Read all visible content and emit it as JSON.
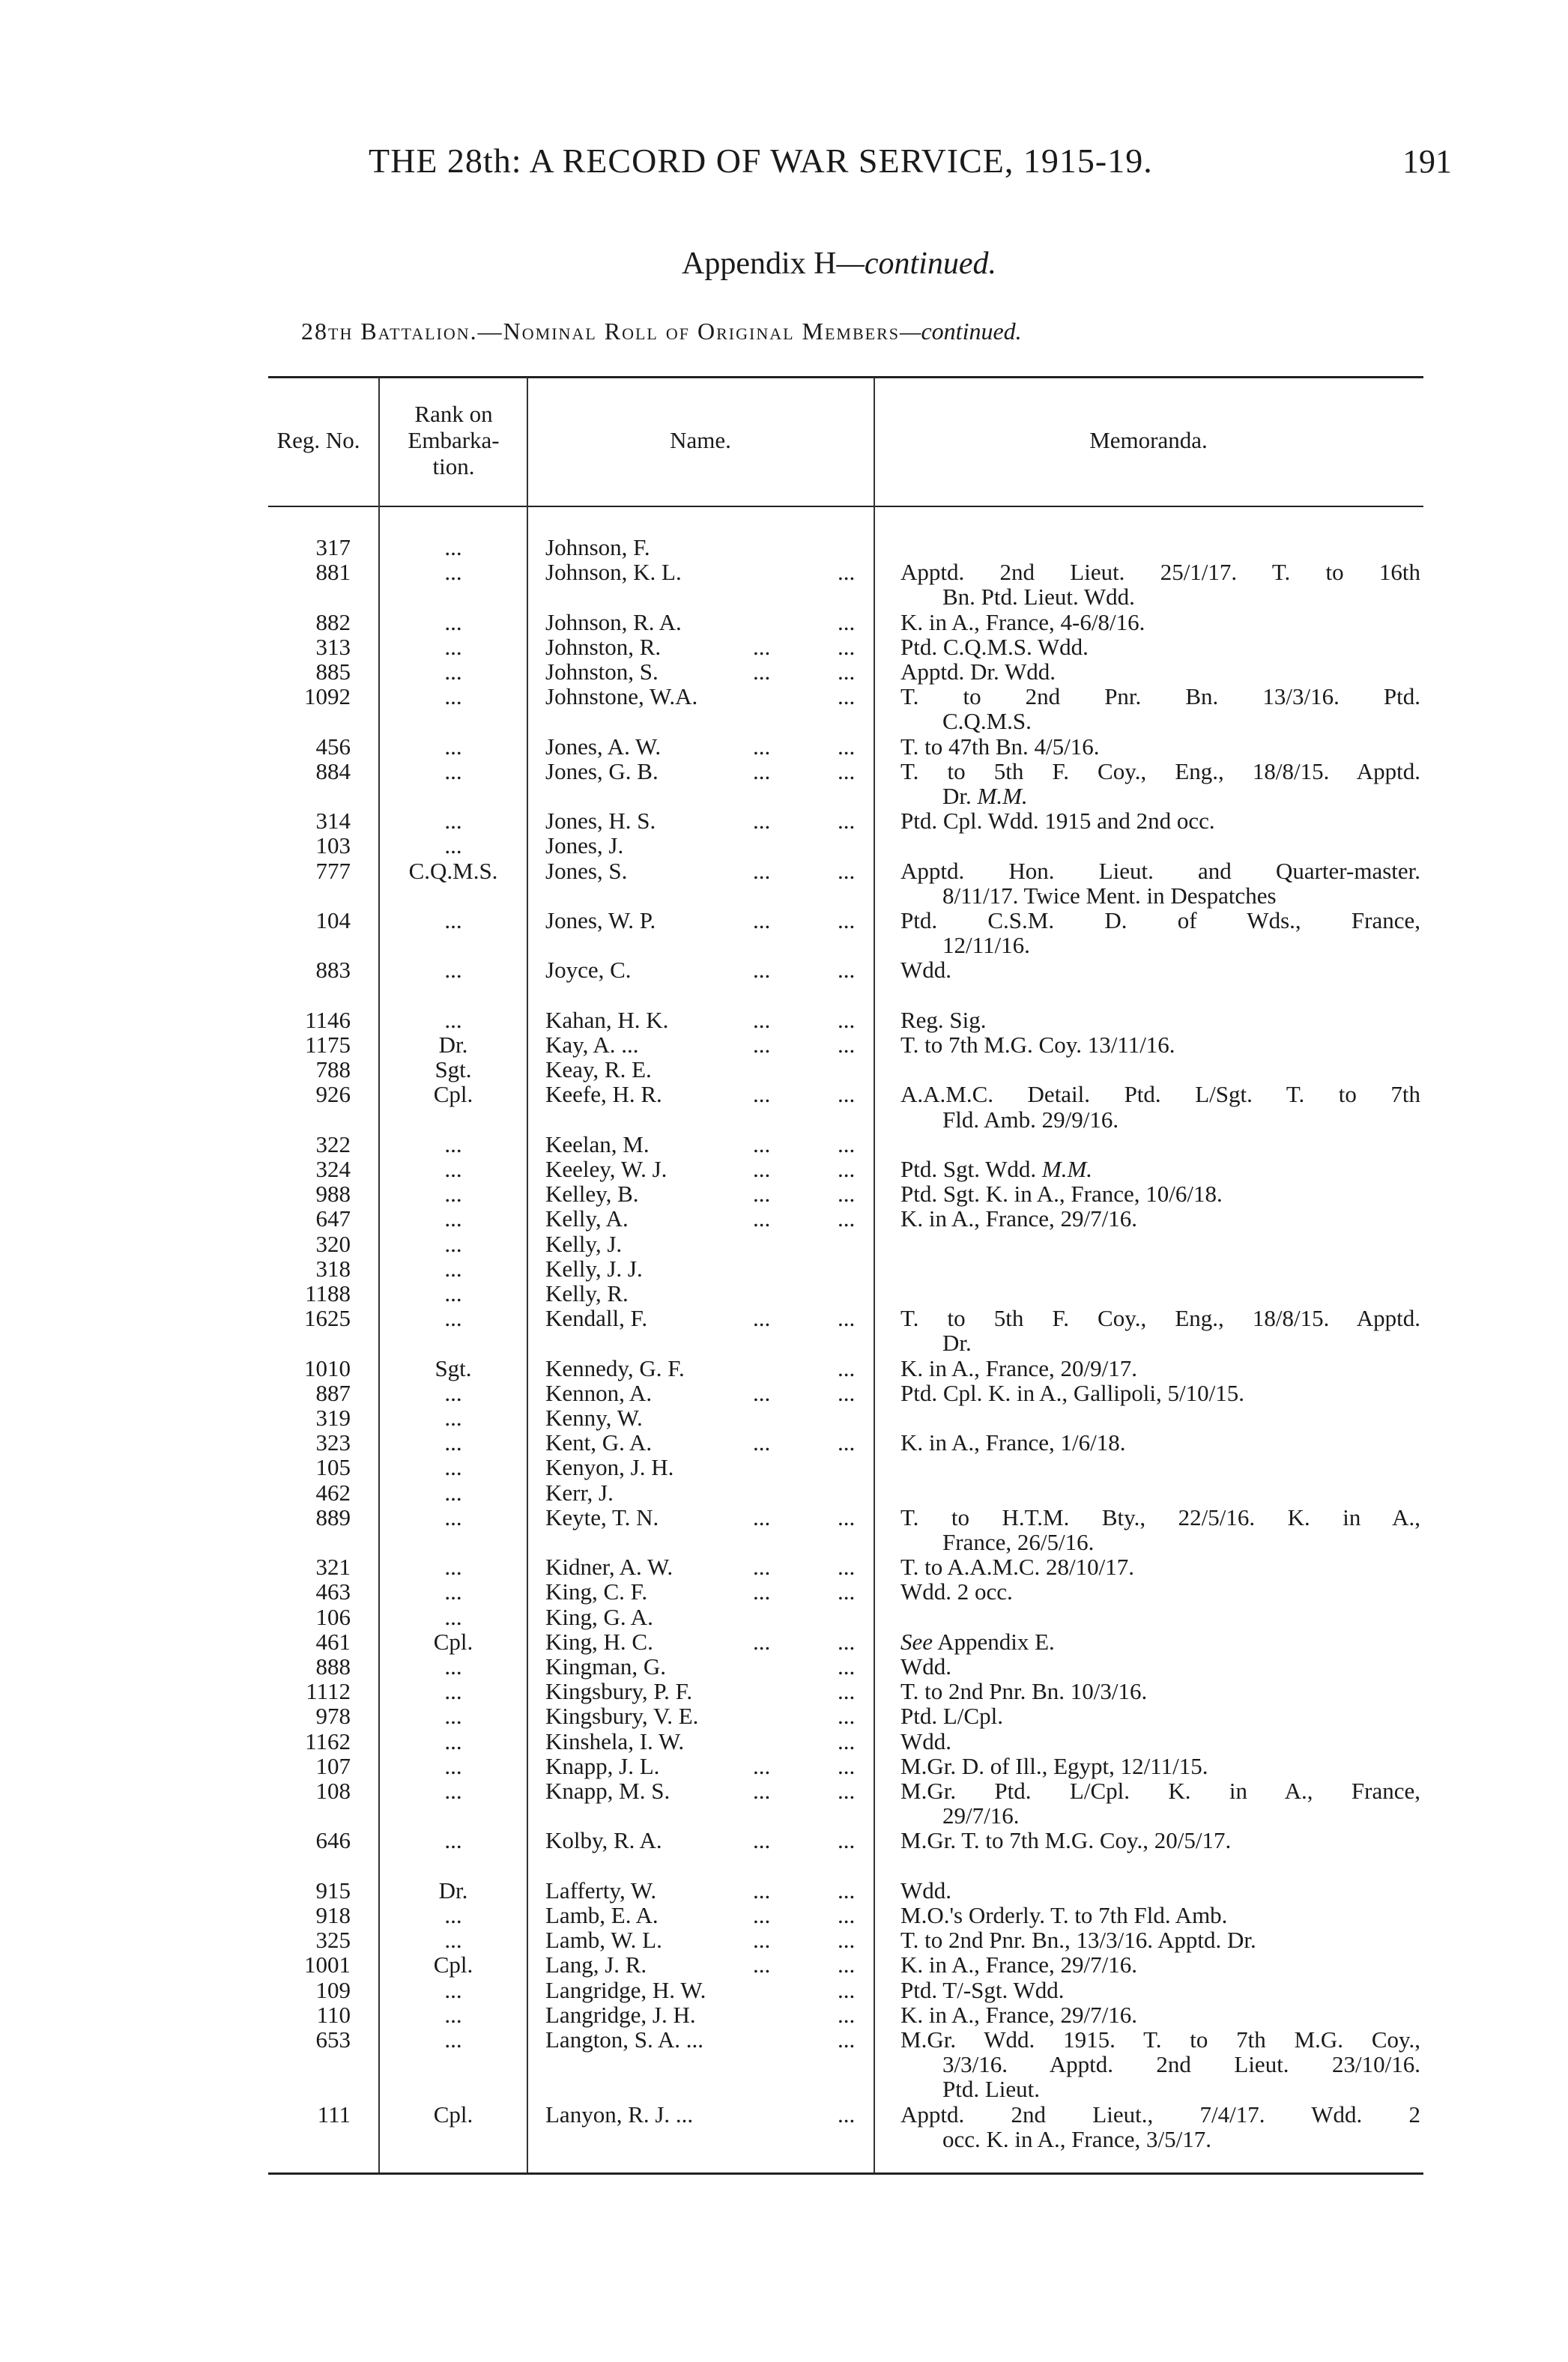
{
  "page": {
    "running_head": "THE 28th: A RECORD OF WAR SERVICE, 1915-19.",
    "page_number": "191",
    "appendix_title": "Appendix H",
    "appendix_title_suffix": "—continued.",
    "roll_title": "28th Battalion.—Nominal Roll of Original Members",
    "roll_title_suffix": "—continued."
  },
  "table": {
    "headers": {
      "reg_no": "Reg. No.",
      "rank": [
        "Rank on",
        "Embarka-",
        "tion."
      ],
      "name": "Name.",
      "memoranda": "Memoranda."
    },
    "rows": [
      {
        "reg": "317",
        "rank": "...",
        "name": "Johnson, F.",
        "mid": "",
        "end": "",
        "memo": []
      },
      {
        "reg": "881",
        "rank": "...",
        "name": "Johnson, K. L.",
        "mid": "",
        "end": "...",
        "memo": [
          "Apptd. 2nd Lieut. 25/1/17. T. to 16th",
          "Bn. Ptd. Lieut. Wdd."
        ]
      },
      {
        "reg": "882",
        "rank": "...",
        "name": "Johnson, R. A.",
        "mid": "",
        "end": "...",
        "memo": [
          "K. in A., France, 4-6/8/16."
        ]
      },
      {
        "reg": "313",
        "rank": "...",
        "name": "Johnston, R.",
        "mid": "...",
        "end": "...",
        "memo": [
          "Ptd. C.Q.M.S. Wdd."
        ]
      },
      {
        "reg": "885",
        "rank": "...",
        "name": "Johnston, S.",
        "mid": "...",
        "end": "...",
        "memo": [
          "Apptd. Dr. Wdd."
        ]
      },
      {
        "reg": "1092",
        "rank": "...",
        "name": "Johnstone, W.A.",
        "mid": "",
        "end": "...",
        "memo": [
          "T. to 2nd Pnr. Bn. 13/3/16. Ptd.",
          "C.Q.M.S."
        ]
      },
      {
        "reg": "456",
        "rank": "...",
        "name": "Jones, A. W.",
        "mid": "...",
        "end": "...",
        "memo": [
          "T. to 47th Bn. 4/5/16."
        ]
      },
      {
        "reg": "884",
        "rank": "...",
        "name": "Jones, G. B.",
        "mid": "...",
        "end": "...",
        "memo": [
          "T. to 5th F. Coy., Eng., 18/8/15. Apptd.",
          "Dr. M.M."
        ],
        "italic": [
          "M.M."
        ]
      },
      {
        "reg": "314",
        "rank": "...",
        "name": "Jones, H. S.",
        "mid": "...",
        "end": "...",
        "memo": [
          "Ptd. Cpl. Wdd. 1915 and 2nd occ."
        ]
      },
      {
        "reg": "103",
        "rank": "...",
        "name": "Jones, J.",
        "mid": "",
        "end": "",
        "memo": []
      },
      {
        "reg": "777",
        "rank": "C.Q.M.S.",
        "name": "Jones, S.",
        "mid": "...",
        "end": "...",
        "memo": [
          "Apptd. Hon. Lieut. and Quarter-master.",
          "8/11/17. Twice Ment. in Despatches"
        ]
      },
      {
        "reg": "104",
        "rank": "...",
        "name": "Jones, W. P.",
        "mid": "...",
        "end": "...",
        "memo": [
          "Ptd. C.S.M. D. of Wds., France,",
          "12/11/16."
        ]
      },
      {
        "reg": "883",
        "rank": "...",
        "name": "Joyce, C.",
        "mid": "...",
        "end": "...",
        "memo": [
          "Wdd."
        ]
      },
      {
        "reg": "1146",
        "rank": "...",
        "name": "Kahan, H. K.",
        "mid": "...",
        "end": "...",
        "memo": [
          "Reg. Sig."
        ]
      },
      {
        "reg": "1175",
        "rank": "Dr.",
        "name": "Kay, A. ...",
        "mid": "...",
        "end": "...",
        "memo": [
          "T. to 7th M.G. Coy. 13/11/16."
        ]
      },
      {
        "reg": "788",
        "rank": "Sgt.",
        "name": "Keay, R. E.",
        "mid": "",
        "end": "",
        "memo": []
      },
      {
        "reg": "926",
        "rank": "Cpl.",
        "name": "Keefe, H. R.",
        "mid": "...",
        "end": "...",
        "memo": [
          "A.A.M.C. Detail. Ptd. L/Sgt. T. to 7th",
          "Fld. Amb. 29/9/16."
        ]
      },
      {
        "reg": "322",
        "rank": "...",
        "name": "Keelan, M.",
        "mid": "...",
        "end": "...",
        "memo": []
      },
      {
        "reg": "324",
        "rank": "...",
        "name": "Keeley, W. J.",
        "mid": "...",
        "end": "...",
        "memo": [
          "Ptd. Sgt. Wdd. M.M."
        ],
        "italic": [
          "M.M."
        ]
      },
      {
        "reg": "988",
        "rank": "...",
        "name": "Kelley, B.",
        "mid": "...",
        "end": "...",
        "memo": [
          "Ptd. Sgt. K. in A., France, 10/6/18."
        ]
      },
      {
        "reg": "647",
        "rank": "...",
        "name": "Kelly, A.",
        "mid": "...",
        "end": "...",
        "memo": [
          "K. in A., France, 29/7/16."
        ]
      },
      {
        "reg": "320",
        "rank": "...",
        "name": "Kelly, J.",
        "mid": "",
        "end": "",
        "memo": []
      },
      {
        "reg": "318",
        "rank": "...",
        "name": "Kelly, J. J.",
        "mid": "",
        "end": "",
        "memo": []
      },
      {
        "reg": "1188",
        "rank": "...",
        "name": "Kelly, R.",
        "mid": "",
        "end": "",
        "memo": []
      },
      {
        "reg": "1625",
        "rank": "...",
        "name": "Kendall, F.",
        "mid": "...",
        "end": "...",
        "memo": [
          "T. to 5th F. Coy., Eng., 18/8/15. Apptd.",
          "Dr."
        ]
      },
      {
        "reg": "1010",
        "rank": "Sgt.",
        "name": "Kennedy, G. F.",
        "mid": "",
        "end": "...",
        "memo": [
          "K. in A., France, 20/9/17."
        ]
      },
      {
        "reg": "887",
        "rank": "...",
        "name": "Kennon, A.",
        "mid": "...",
        "end": "...",
        "memo": [
          "Ptd. Cpl. K. in A., Gallipoli, 5/10/15."
        ]
      },
      {
        "reg": "319",
        "rank": "...",
        "name": "Kenny, W.",
        "mid": "",
        "end": "",
        "memo": []
      },
      {
        "reg": "323",
        "rank": "...",
        "name": "Kent, G. A.",
        "mid": "...",
        "end": "...",
        "memo": [
          "K. in A., France, 1/6/18."
        ]
      },
      {
        "reg": "105",
        "rank": "...",
        "name": "Kenyon, J. H.",
        "mid": "",
        "end": "",
        "memo": []
      },
      {
        "reg": "462",
        "rank": "...",
        "name": "Kerr, J.",
        "mid": "",
        "end": "",
        "memo": []
      },
      {
        "reg": "889",
        "rank": "...",
        "name": "Keyte, T. N.",
        "mid": "...",
        "end": "...",
        "memo": [
          "T. to H.T.M. Bty., 22/5/16. K. in A.,",
          "France, 26/5/16."
        ]
      },
      {
        "reg": "321",
        "rank": "...",
        "name": "Kidner, A. W.",
        "mid": "...",
        "end": "...",
        "memo": [
          "T. to A.A.M.C. 28/10/17."
        ]
      },
      {
        "reg": "463",
        "rank": "...",
        "name": "King, C. F.",
        "mid": "...",
        "end": "...",
        "memo": [
          "Wdd. 2 occ."
        ]
      },
      {
        "reg": "106",
        "rank": "...",
        "name": "King, G. A.",
        "mid": "",
        "end": "",
        "memo": []
      },
      {
        "reg": "461",
        "rank": "Cpl.",
        "name": "King, H. C.",
        "mid": "...",
        "end": "...",
        "memo": [
          "See Appendix E."
        ],
        "italic": [
          "See"
        ]
      },
      {
        "reg": "888",
        "rank": "...",
        "name": "Kingman, G.",
        "mid": "",
        "end": "...",
        "memo": [
          "Wdd."
        ]
      },
      {
        "reg": "1112",
        "rank": "...",
        "name": "Kingsbury, P. F.",
        "mid": "",
        "end": "...",
        "memo": [
          "T. to 2nd Pnr. Bn. 10/3/16."
        ]
      },
      {
        "reg": "978",
        "rank": "...",
        "name": "Kingsbury, V. E.",
        "mid": "",
        "end": "...",
        "memo": [
          "Ptd. L/Cpl."
        ]
      },
      {
        "reg": "1162",
        "rank": "...",
        "name": "Kinshela, I. W.",
        "mid": "",
        "end": "...",
        "memo": [
          "Wdd."
        ]
      },
      {
        "reg": "107",
        "rank": "...",
        "name": "Knapp, J. L.",
        "mid": "...",
        "end": "...",
        "memo": [
          "M.Gr. D. of Ill., Egypt, 12/11/15."
        ]
      },
      {
        "reg": "108",
        "rank": "...",
        "name": "Knapp, M. S.",
        "mid": "...",
        "end": "...",
        "memo": [
          "M.Gr. Ptd. L/Cpl. K. in A., France,",
          "29/7/16."
        ]
      },
      {
        "reg": "646",
        "rank": "...",
        "name": "Kolby, R. A.",
        "mid": "...",
        "end": "...",
        "memo": [
          "M.Gr. T. to 7th M.G. Coy., 20/5/17."
        ]
      },
      {
        "reg": "915",
        "rank": "Dr.",
        "name": "Lafferty, W.",
        "mid": "...",
        "end": "...",
        "memo": [
          "Wdd."
        ]
      },
      {
        "reg": "918",
        "rank": "...",
        "name": "Lamb, E. A.",
        "mid": "...",
        "end": "...",
        "memo": [
          "M.O.'s Orderly. T. to 7th Fld. Amb."
        ]
      },
      {
        "reg": "325",
        "rank": "...",
        "name": "Lamb, W. L.",
        "mid": "...",
        "end": "...",
        "memo": [
          "T. to 2nd Pnr. Bn., 13/3/16. Apptd. Dr."
        ]
      },
      {
        "reg": "1001",
        "rank": "Cpl.",
        "name": "Lang, J. R.",
        "mid": "...",
        "end": "...",
        "memo": [
          "K. in A., France, 29/7/16."
        ]
      },
      {
        "reg": "109",
        "rank": "...",
        "name": "Langridge, H. W.",
        "mid": "",
        "end": "...",
        "memo": [
          "Ptd. T/-Sgt. Wdd."
        ]
      },
      {
        "reg": "110",
        "rank": "...",
        "name": "Langridge, J. H.",
        "mid": "",
        "end": "...",
        "memo": [
          "K. in A., France, 29/7/16."
        ]
      },
      {
        "reg": "653",
        "rank": "...",
        "name": "Langton, S. A. ...",
        "mid": "",
        "end": "...",
        "memo": [
          "M.Gr. Wdd. 1915. T. to 7th M.G. Coy.,",
          "3/3/16. Apptd. 2nd Lieut. 23/10/16.",
          "Ptd. Lieut."
        ]
      },
      {
        "reg": "111",
        "rank": "Cpl.",
        "name": "Lanyon, R. J. ...",
        "mid": "",
        "end": "...",
        "memo": [
          "Apptd. 2nd Lieut., 7/4/17. Wdd. 2",
          "occ. K. in A., France, 3/5/17."
        ]
      }
    ]
  }
}
